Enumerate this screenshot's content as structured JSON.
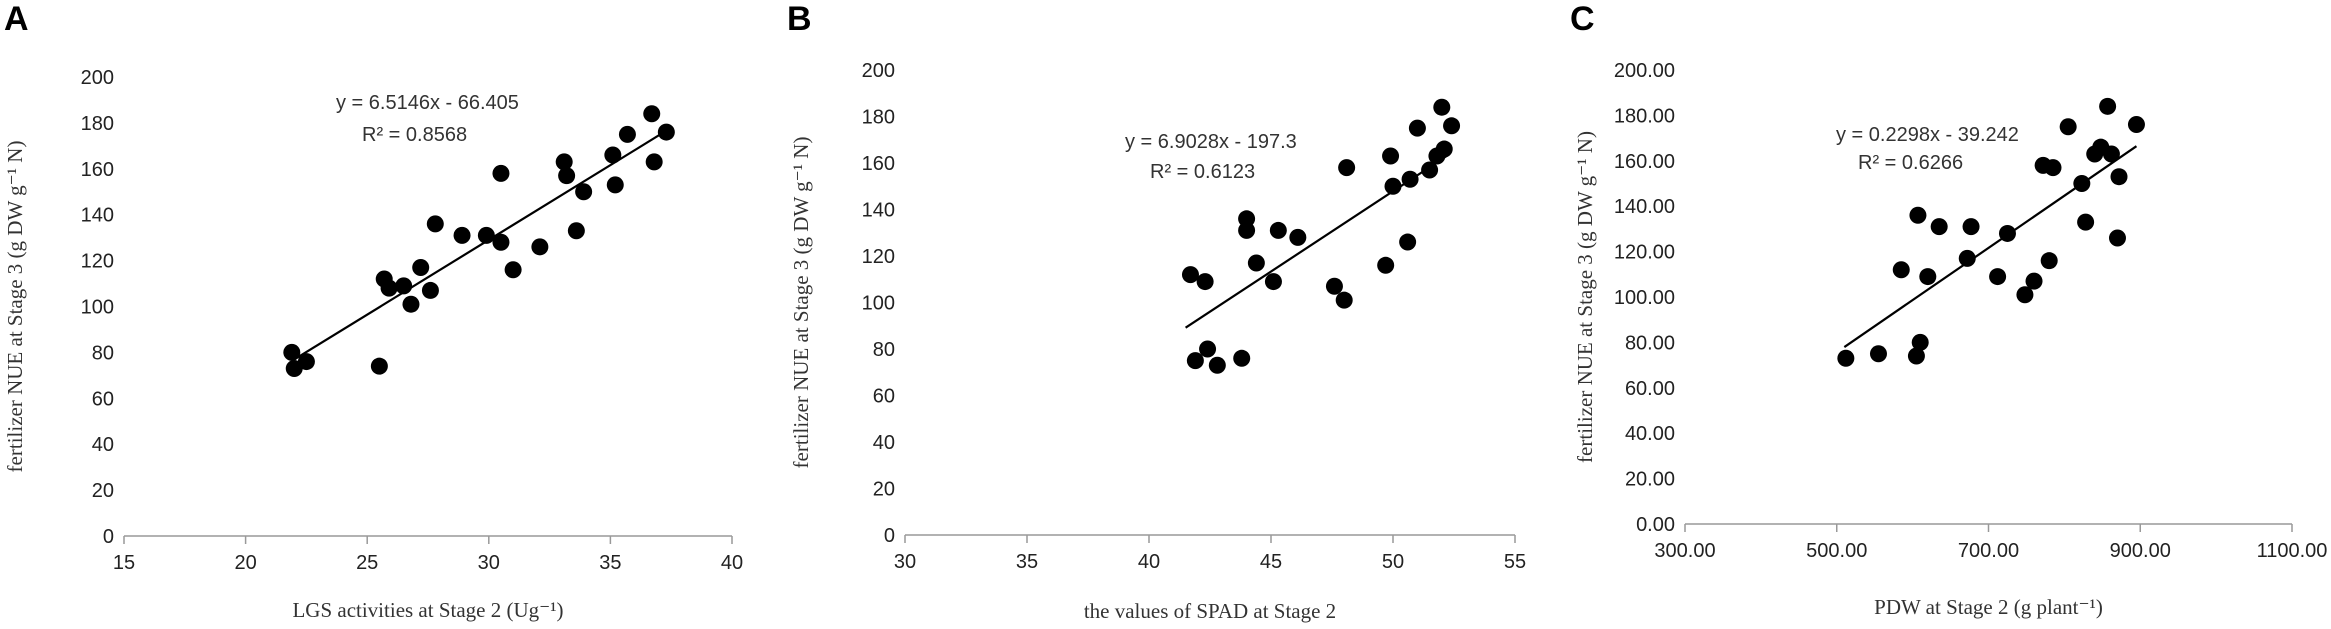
{
  "chart_data": [
    {
      "type": "scatter",
      "panel": "A",
      "xlabel": "LGS activities at Stage 2 (Ug⁻¹)",
      "ylabel": "fertilizer NUE at Stage 3 (g DW g⁻¹ N)",
      "xlim": [
        15,
        40
      ],
      "ylim": [
        0,
        200
      ],
      "xticks": [
        15,
        20,
        25,
        30,
        35,
        40
      ],
      "yticks": [
        0,
        20,
        40,
        60,
        80,
        100,
        120,
        140,
        160,
        180,
        200
      ],
      "xtick_labels": [
        "15",
        "20",
        "25",
        "30",
        "35",
        "40"
      ],
      "ytick_labels": [
        "0",
        "20",
        "40",
        "60",
        "80",
        "100",
        "120",
        "140",
        "160",
        "180",
        "200"
      ],
      "equation": "y = 6.5146x - 66.405",
      "r2": "R² = 0.8568",
      "trendline": {
        "slope": 6.5146,
        "intercept": -66.405,
        "x_range": [
          22.0,
          37.3
        ]
      },
      "x": [
        21.9,
        22.0,
        22.5,
        25.5,
        25.7,
        25.9,
        26.5,
        26.8,
        27.2,
        27.6,
        27.8,
        28.9,
        29.9,
        30.5,
        30.5,
        31.0,
        32.1,
        33.1,
        33.2,
        33.6,
        33.9,
        35.1,
        35.2,
        35.7,
        36.7,
        36.8,
        37.3
      ],
      "y": [
        80,
        73,
        76,
        74,
        112,
        108,
        109,
        101,
        117,
        107,
        136,
        131,
        131,
        128,
        158,
        116,
        126,
        163,
        157,
        133,
        150,
        166,
        153,
        175,
        184,
        163,
        176
      ]
    },
    {
      "type": "scatter",
      "panel": "B",
      "xlabel": "the values of SPAD at Stage 2",
      "ylabel": "fertilizer NUE at Stage 3 (g DW g⁻¹ N)",
      "xlim": [
        30,
        55
      ],
      "ylim": [
        0,
        200
      ],
      "xticks": [
        30,
        35,
        40,
        45,
        50,
        55
      ],
      "yticks": [
        0,
        20,
        40,
        60,
        80,
        100,
        120,
        140,
        160,
        180,
        200
      ],
      "xtick_labels": [
        "30",
        "35",
        "40",
        "45",
        "50",
        "55"
      ],
      "ytick_labels": [
        "0",
        "20",
        "40",
        "60",
        "80",
        "100",
        "120",
        "140",
        "160",
        "180",
        "200"
      ],
      "equation": "y = 6.9028x - 197.3",
      "r2": "R² = 0.6123",
      "trendline": {
        "slope": 6.9028,
        "intercept": -197.3,
        "x_range": [
          41.5,
          52.3
        ]
      },
      "x": [
        41.7,
        41.9,
        42.3,
        42.4,
        42.8,
        43.8,
        44.0,
        44.0,
        44.4,
        45.1,
        45.3,
        46.1,
        47.6,
        48.0,
        48.1,
        49.7,
        49.9,
        50.0,
        50.6,
        50.7,
        51.0,
        51.5,
        51.8,
        52.0,
        52.1,
        52.4
      ],
      "y": [
        112,
        75,
        109,
        80,
        73,
        76,
        131,
        136,
        117,
        109,
        131,
        128,
        107,
        101,
        158,
        116,
        163,
        150,
        126,
        153,
        175,
        157,
        163,
        184,
        166,
        176
      ]
    },
    {
      "type": "scatter",
      "panel": "C",
      "xlabel": "PDW at Stage 2 (g plant⁻¹)",
      "ylabel": "fertilizer NUE at Stage 3 (g DW g⁻¹ N)",
      "xlim": [
        300,
        1100
      ],
      "ylim": [
        0,
        200
      ],
      "xticks": [
        300,
        500,
        700,
        900,
        1100
      ],
      "yticks": [
        0,
        20,
        40,
        60,
        80,
        100,
        120,
        140,
        160,
        180,
        200
      ],
      "xtick_labels": [
        "300.00",
        "500.00",
        "700.00",
        "900.00",
        "1100.00"
      ],
      "ytick_labels": [
        "0.00",
        "20.00",
        "40.00",
        "60.00",
        "80.00",
        "100.00",
        "120.00",
        "140.00",
        "160.00",
        "180.00",
        "200.00"
      ],
      "equation": "y = 0.2298x - 39.242",
      "r2": "R² = 0.6266",
      "trendline": {
        "slope": 0.2298,
        "intercept": -39.242,
        "x_range": [
          510,
          895
        ]
      },
      "x": [
        512,
        555,
        585,
        605,
        607,
        610,
        620,
        635,
        672,
        677,
        712,
        725,
        748,
        760,
        772,
        780,
        785,
        805,
        823,
        828,
        840,
        848,
        857,
        862,
        870,
        872,
        895
      ],
      "y": [
        73,
        75,
        112,
        74,
        136,
        80,
        109,
        131,
        117,
        131,
        109,
        128,
        101,
        107,
        158,
        116,
        157,
        175,
        150,
        133,
        163,
        166,
        184,
        163,
        126,
        153,
        176
      ]
    }
  ]
}
